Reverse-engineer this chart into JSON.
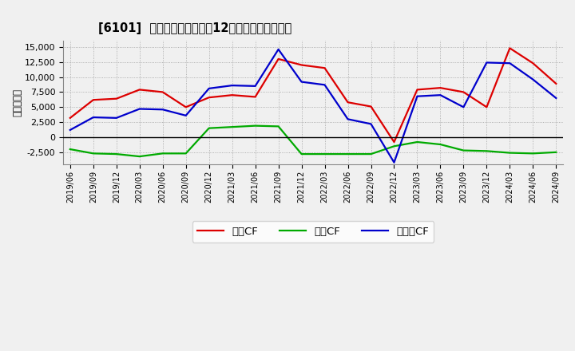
{
  "title": "[6101]  キャッシュフローの12か月移動合計の推移",
  "ylabel": "（百万円）",
  "background_color": "#f0f0f0",
  "plot_bg_color": "#f0f0f0",
  "grid_color": "#888888",
  "ylim": [
    -4500,
    16000
  ],
  "yticks": [
    -2500,
    0,
    2500,
    5000,
    7500,
    10000,
    12500,
    15000
  ],
  "dates": [
    "2019/06",
    "2019/09",
    "2019/12",
    "2020/03",
    "2020/06",
    "2020/09",
    "2020/12",
    "2021/03",
    "2021/06",
    "2021/09",
    "2021/12",
    "2022/03",
    "2022/06",
    "2022/09",
    "2022/12",
    "2023/03",
    "2023/06",
    "2023/09",
    "2023/12",
    "2024/03",
    "2024/06",
    "2024/09"
  ],
  "eigyo_cf": [
    3200,
    6200,
    6400,
    7900,
    7500,
    5000,
    6600,
    7000,
    6700,
    13000,
    12000,
    11500,
    5800,
    5100,
    -800,
    7900,
    8200,
    7500,
    5000,
    14800,
    12300,
    8900
  ],
  "toshi_cf": [
    -2000,
    -2700,
    -2800,
    -3200,
    -2700,
    -2700,
    1500,
    1700,
    1900,
    1800,
    -2800,
    -2800,
    -2800,
    -2800,
    -1500,
    -800,
    -1200,
    -2200,
    -2300,
    -2600,
    -2700,
    -2500
  ],
  "free_cf": [
    1200,
    3300,
    3200,
    4700,
    4600,
    3600,
    8100,
    8600,
    8500,
    14600,
    9200,
    8700,
    3000,
    2200,
    -4200,
    6800,
    7000,
    5000,
    12400,
    12300,
    9600,
    6500
  ],
  "eigyo_color": "#dd0000",
  "toshi_color": "#00aa00",
  "free_color": "#0000cc",
  "line_width": 1.6,
  "legend_labels": [
    "営業CF",
    "投資CF",
    "フリーCF"
  ]
}
